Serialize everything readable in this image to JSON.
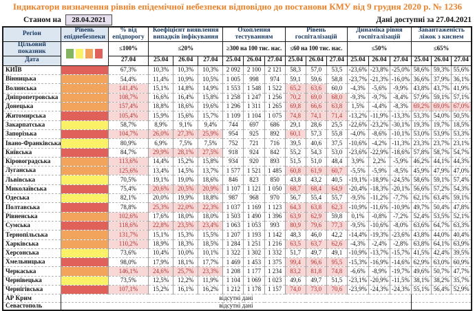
{
  "title": "Індикатори визначення рівнів епідемічної небезпеки відповідно до постанови КМУ від 9 грудня 2020 р. № 1236",
  "topbar": {
    "as_of_label": "Станом на",
    "as_of_date": "28.04.2021",
    "data_available": "Дані доступні за 27.04.2021"
  },
  "colors": {
    "title": "#e8832c",
    "header_bg": "#dce6f1",
    "header_text": "#17375e",
    "as_of_bg": "#e5dfee",
    "level_red": "#e0605a",
    "level_orange": "#f3a45c",
    "level_yellow": "#fbf166",
    "legend_green": "#83b45f",
    "hl_bg": "#f7d8d6",
    "hl_text": "#b33030"
  },
  "table": {
    "corner": {
      "region": "Регіон",
      "target": "Цільовий показник",
      "date": "Дата"
    },
    "level_header": "Рівень епіднебезпеки",
    "legend": [
      "green",
      "yellow",
      "orange",
      "red"
    ],
    "groups": [
      {
        "label": "% від епідпорогу",
        "target": "≤100%",
        "dates": [
          "27.04"
        ]
      },
      {
        "label": "Коефіцієнт виявлення випадків інфікування",
        "target": "≤20%",
        "dates": [
          "25.04",
          "26.04",
          "27.04"
        ]
      },
      {
        "label": "Охоплення тестуванням",
        "target": "≥300 на 100 тис. нас.",
        "dates": [
          "25.04",
          "26.04",
          "27.04"
        ]
      },
      {
        "label": "Рівень госпіталізацій",
        "target": "≤60 на 100 тис. нас.",
        "dates": [
          "25.04",
          "26.04",
          "27.04"
        ]
      },
      {
        "label": "Динаміка рівня госпіталізацій",
        "target": "≤50%",
        "dates": [
          "25.04",
          "26.04",
          "27.04"
        ]
      },
      {
        "label": "Завантаженість ліжок з киснем",
        "target": "≤65%",
        "dates": [
          "25.04",
          "26.04",
          "27.04"
        ]
      }
    ],
    "rows": [
      {
        "name": "КИЇВ",
        "level": "red",
        "values": [
          "67,3%",
          "10,3%",
          "10,3%",
          "10,3%",
          "2 092",
          "2 100",
          "2 121",
          "58,3",
          "57,0",
          "53,5",
          "-23,6%",
          "-23,8%",
          "-25,0%",
          "58,6%",
          "59,3%",
          "55,6%"
        ],
        "hl": [
          0,
          0,
          0,
          0,
          0,
          0,
          0,
          0,
          0,
          0,
          0,
          0,
          0,
          0,
          0,
          0
        ]
      },
      {
        "name": "Вінницька",
        "level": "orange",
        "values": [
          "54,4%",
          "11,4%",
          "10,9%",
          "10,5%",
          "1 005",
          "998",
          "974",
          "59,1",
          "59,6",
          "58,8",
          "-23,7%",
          "-21,3%",
          "-16,0%",
          "36,6%",
          "37,9%",
          "36,1%"
        ],
        "hl": [
          0,
          0,
          0,
          0,
          0,
          0,
          0,
          0,
          0,
          0,
          0,
          0,
          0,
          0,
          0,
          0
        ]
      },
      {
        "name": "Волинська",
        "level": "orange",
        "values": [
          "141,4%",
          "15,1%",
          "14,8%",
          "14,9%",
          "1 553",
          "1 548",
          "1 522",
          "65,2",
          "63,6",
          "60,0",
          "-4,3%",
          "-5,6%",
          "-9,9%",
          "43,8%",
          "43,7%",
          "41,9%"
        ],
        "hl": [
          1,
          0,
          0,
          0,
          0,
          0,
          0,
          1,
          1,
          0,
          0,
          0,
          0,
          0,
          0,
          0
        ]
      },
      {
        "name": "Дніпропетровська",
        "level": "orange",
        "values": [
          "108,7%",
          "16,6%",
          "16,4%",
          "15,8%",
          "1 258",
          "1 247",
          "1 256",
          "70,2",
          "69,0",
          "68,0",
          "-9,3%",
          "-9,7%",
          "-8,4%",
          "57,9%",
          "59,1%",
          "57,1%"
        ],
        "hl": [
          1,
          0,
          0,
          0,
          0,
          0,
          0,
          1,
          1,
          1,
          0,
          0,
          0,
          0,
          0,
          0
        ]
      },
      {
        "name": "Донецька",
        "level": "orange",
        "values": [
          "157,4%",
          "18,8%",
          "18,6%",
          "19,6%",
          "1 296",
          "1 311",
          "1 265",
          "69,8",
          "66,6",
          "63,8",
          "1,5%",
          "-4,4%",
          "-8,3%",
          "69,2%",
          "69,0%",
          "67,0%"
        ],
        "hl": [
          1,
          0,
          0,
          0,
          0,
          0,
          0,
          1,
          1,
          1,
          0,
          0,
          0,
          1,
          1,
          1
        ]
      },
      {
        "name": "Житомирська",
        "level": "red",
        "values": [
          "105,4%",
          "15,9%",
          "15,6%",
          "15,7%",
          "1 109",
          "1 104",
          "1 075",
          "74,8",
          "74,1",
          "71,4",
          "-13,2%",
          "-11,9%",
          "-13,3%",
          "53,3%",
          "54,0%",
          "50,5%"
        ],
        "hl": [
          1,
          0,
          0,
          0,
          0,
          0,
          0,
          1,
          1,
          1,
          0,
          0,
          0,
          0,
          0,
          0
        ]
      },
      {
        "name": "Закарпатська",
        "level": "yellow",
        "values": [
          "58,7%",
          "8,9%",
          "9,1%",
          "9,4%",
          "744",
          "697",
          "686",
          "29,1",
          "28,6",
          "25,5",
          "-22,6%",
          "-23,2%",
          "-30,1%",
          "19,3%",
          "19,7%",
          "18,5%"
        ],
        "hl": [
          0,
          0,
          0,
          0,
          0,
          0,
          0,
          0,
          0,
          0,
          0,
          0,
          0,
          0,
          0,
          0
        ]
      },
      {
        "name": "Запорізька",
        "level": "red",
        "values": [
          "104,7%",
          "26,0%",
          "27,3%",
          "25,9%",
          "954",
          "925",
          "892",
          "60,1",
          "57,3",
          "55,8",
          "-4,0%",
          "-8,6%",
          "-10,1%",
          "53,0%",
          "53,9%",
          "53,3%"
        ],
        "hl": [
          1,
          1,
          1,
          1,
          0,
          0,
          0,
          1,
          0,
          0,
          0,
          0,
          0,
          0,
          0,
          0
        ]
      },
      {
        "name": "Івано-Франківська",
        "level": "yellow",
        "values": [
          "80,9%",
          "6,9%",
          "7,5%",
          "7,5%",
          "752",
          "721",
          "716",
          "39,5",
          "40,6",
          "37,5",
          "-10,6%",
          "-4,2%",
          "-11,3%",
          "23,3%",
          "23,7%",
          "23,1%"
        ],
        "hl": [
          0,
          0,
          0,
          0,
          0,
          0,
          0,
          0,
          0,
          0,
          0,
          0,
          0,
          0,
          0,
          0
        ]
      },
      {
        "name": "Київська",
        "level": "red",
        "values": [
          "84,7%",
          "29,9%",
          "28,1%",
          "27,5%",
          "918",
          "924",
          "842",
          "55,2",
          "54,3",
          "53,0",
          "-23,6%",
          "-22,9%",
          "-18,6%",
          "57,8%",
          "58,7%",
          "54,7%"
        ],
        "hl": [
          0,
          1,
          1,
          1,
          0,
          0,
          0,
          0,
          0,
          0,
          0,
          0,
          0,
          0,
          0,
          0
        ]
      },
      {
        "name": "Кіровоградська",
        "level": "orange",
        "values": [
          "113,6%",
          "14,4%",
          "15,2%",
          "15,8%",
          "934",
          "920",
          "893",
          "51,5",
          "51,0",
          "48,4",
          "3,9%",
          "2,2%",
          "-5,9%",
          "46,2%",
          "44,1%",
          "44,3%"
        ],
        "hl": [
          1,
          0,
          0,
          0,
          0,
          0,
          0,
          0,
          0,
          0,
          0,
          0,
          0,
          0,
          0,
          0
        ]
      },
      {
        "name": "Луганська",
        "level": "orange",
        "values": [
          "125,6%",
          "13,4%",
          "14,5%",
          "13,7%",
          "1 577",
          "1 521",
          "1 485",
          "60,8",
          "61,9",
          "60,7",
          "-5,5%",
          "-5,9%",
          "-8,5%",
          "45,9%",
          "47,9%",
          "47,0%"
        ],
        "hl": [
          1,
          0,
          0,
          0,
          0,
          0,
          0,
          1,
          1,
          1,
          0,
          0,
          0,
          0,
          0,
          0
        ]
      },
      {
        "name": "Львівська",
        "level": "yellow",
        "values": [
          "70,5%",
          "19,1%",
          "19,0%",
          "18,6%",
          "846",
          "823",
          "850",
          "43,8",
          "43,2",
          "40,5",
          "-19,1%",
          "-18,9%",
          "-24,5%",
          "58,6%",
          "59,1%",
          "57,4%"
        ],
        "hl": [
          0,
          0,
          0,
          0,
          0,
          0,
          0,
          0,
          0,
          0,
          0,
          0,
          0,
          0,
          0,
          0
        ]
      },
      {
        "name": "Миколаївська",
        "level": "red",
        "values": [
          "75,4%",
          "20,6%",
          "20,5%",
          "20,9%",
          "1 107",
          "1 121",
          "1 050",
          "68,7",
          "68,4",
          "64,9",
          "-20,4%",
          "-18,3%",
          "-20,1%",
          "56,6%",
          "57,2%",
          "54,3%"
        ],
        "hl": [
          0,
          1,
          1,
          1,
          0,
          0,
          0,
          1,
          1,
          1,
          0,
          0,
          0,
          0,
          0,
          0
        ]
      },
      {
        "name": "Одеська",
        "level": "yellow",
        "values": [
          "82,1%",
          "20,0%",
          "19,9%",
          "18,8%",
          "987",
          "968",
          "970",
          "56,7",
          "55,4",
          "55,7",
          "-9,5%",
          "-11,2%",
          "-7,7%",
          "62,1%",
          "63,4%",
          "59,1%"
        ],
        "hl": [
          0,
          0,
          0,
          0,
          0,
          0,
          0,
          0,
          0,
          0,
          0,
          0,
          0,
          0,
          0,
          0
        ]
      },
      {
        "name": "Полтавська",
        "level": "red",
        "values": [
          "78,8%",
          "25,3%",
          "22,0%",
          "22,3%",
          "1 037",
          "1 169",
          "1 123",
          "64,3",
          "63,8",
          "62,3",
          "-10,9%",
          "-11,6%",
          "-10,9%",
          "49,7%",
          "50,4%",
          "47,8%"
        ],
        "hl": [
          0,
          1,
          1,
          1,
          0,
          0,
          0,
          1,
          1,
          1,
          0,
          0,
          0,
          0,
          0,
          0
        ]
      },
      {
        "name": "Рівненська",
        "level": "orange",
        "values": [
          "102,6%",
          "17,6%",
          "18,0%",
          "18,0%",
          "1 503",
          "1 490",
          "1 396",
          "63,9",
          "62,9",
          "59,8",
          "0,1%",
          "-0,8%",
          "-7,2%",
          "52,4%",
          "53,5%",
          "52,1%"
        ],
        "hl": [
          1,
          0,
          0,
          0,
          0,
          0,
          0,
          1,
          1,
          0,
          0,
          0,
          0,
          0,
          0,
          0
        ]
      },
      {
        "name": "Сумська",
        "level": "red",
        "values": [
          "118,6%",
          "22,8%",
          "23,5%",
          "23,4%",
          "1 063",
          "1 053",
          "993",
          "80,9",
          "79,6",
          "77,3",
          "-9,5%",
          "-10,6%",
          "-8,0%",
          "63,6%",
          "64,7%",
          "63,3%"
        ],
        "hl": [
          1,
          1,
          1,
          1,
          0,
          0,
          0,
          1,
          1,
          1,
          0,
          0,
          0,
          0,
          0,
          0
        ]
      },
      {
        "name": "Тернопільська",
        "level": "orange",
        "values": [
          "131,7%",
          "15,1%",
          "15,3%",
          "15,5%",
          "1 207",
          "1 193",
          "1 142",
          "48,3",
          "46,0",
          "42,2",
          "-14,4%",
          "-19,3%",
          "-23,6%",
          "43,8%",
          "44,0%",
          "40,4%"
        ],
        "hl": [
          1,
          0,
          0,
          0,
          0,
          0,
          0,
          0,
          0,
          0,
          0,
          0,
          0,
          0,
          0,
          0
        ]
      },
      {
        "name": "Харківська",
        "level": "orange",
        "values": [
          "110,2%",
          "18,9%",
          "18,3%",
          "18,5%",
          "1 284",
          "1 251",
          "1 216",
          "63,5",
          "63,7",
          "62,6",
          "-4,3%",
          "-2,4%",
          "-2,8%",
          "63,8%",
          "64,1%",
          "63,9%"
        ],
        "hl": [
          1,
          0,
          0,
          0,
          0,
          0,
          0,
          1,
          1,
          1,
          0,
          0,
          0,
          0,
          0,
          0
        ]
      },
      {
        "name": "Херсонська",
        "level": "yellow",
        "values": [
          "73,6%",
          "10,4%",
          "10,0%",
          "10,1%",
          "1 322",
          "1 302",
          "1 332",
          "51,7",
          "49,7",
          "49,1",
          "-10,9%",
          "-13,7%",
          "-15,7%",
          "41,5%",
          "42,4%",
          "39,5%"
        ],
        "hl": [
          0,
          0,
          0,
          0,
          0,
          0,
          0,
          0,
          0,
          0,
          0,
          0,
          0,
          0,
          0,
          0
        ]
      },
      {
        "name": "Хмельницька",
        "level": "red",
        "values": [
          "98,0%",
          "17,9%",
          "18,1%",
          "17,7%",
          "1 469",
          "1 453",
          "1 375",
          "99,4",
          "96,6",
          "95,5",
          "-15,3%",
          "-16,9%",
          "-14,6%",
          "62,9%",
          "63,0%",
          "60,9%"
        ],
        "hl": [
          0,
          0,
          0,
          0,
          0,
          0,
          0,
          1,
          1,
          1,
          0,
          0,
          0,
          0,
          0,
          0
        ]
      },
      {
        "name": "Черкаська",
        "level": "orange",
        "values": [
          "146,1%",
          "24,6%",
          "25,7%",
          "23,3%",
          "1 208",
          "1 177",
          "1 234",
          "83,2",
          "81,8",
          "74,8",
          "-6,6%",
          "-8,9%",
          "-19,7%",
          "49,6%",
          "50,7%",
          "47,7%"
        ],
        "hl": [
          1,
          1,
          1,
          1,
          0,
          0,
          0,
          1,
          1,
          1,
          0,
          0,
          0,
          0,
          0,
          0
        ]
      },
      {
        "name": "Чернівецька",
        "level": "yellow",
        "values": [
          "73,5%",
          "12,5%",
          "12,2%",
          "11,9%",
          "1 104",
          "1 069",
          "1 023",
          "49,6",
          "49,7",
          "51,5",
          "-23,1%",
          "-20,9%",
          "-11,5%",
          "38,1%",
          "38,2%",
          "35,7%"
        ],
        "hl": [
          0,
          0,
          0,
          0,
          0,
          0,
          0,
          0,
          0,
          0,
          0,
          0,
          0,
          0,
          0,
          0
        ]
      },
      {
        "name": "Чернігівська",
        "level": "red",
        "values": [
          "107,1%",
          "15,2%",
          "16,1%",
          "16,2%",
          "1 212",
          "1 178",
          "1 157",
          "74,0",
          "73,0",
          "70,6",
          "-23,9%",
          "-24,3%",
          "-24,3%",
          "55,1%",
          "56,4%",
          "52,9%"
        ],
        "hl": [
          1,
          0,
          0,
          0,
          0,
          0,
          0,
          1,
          1,
          1,
          0,
          0,
          0,
          0,
          0,
          0
        ]
      }
    ],
    "no_data_rows": [
      {
        "name": "АР Крим",
        "note": "відсутні дані"
      },
      {
        "name": "Севастополь",
        "note": "відсутні дані"
      }
    ]
  }
}
